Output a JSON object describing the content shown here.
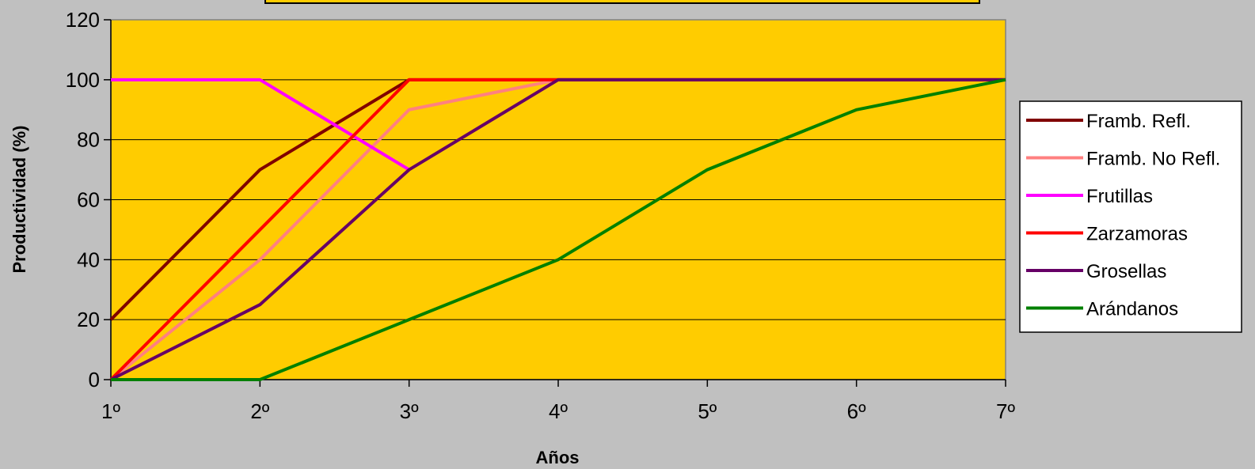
{
  "chart_data": {
    "type": "line",
    "title": "",
    "xlabel": "Años",
    "ylabel": "Productividad (%)",
    "categories": [
      "1º",
      "2º",
      "3º",
      "4º",
      "5º",
      "6º",
      "7º"
    ],
    "ylim": [
      0,
      120
    ],
    "yticks": [
      0,
      20,
      40,
      60,
      80,
      100,
      120
    ],
    "grid": true,
    "legend_position": "right",
    "plot_background": "#FFCC00",
    "series": [
      {
        "name": "Framb. Refl.",
        "color": "#800000",
        "values": [
          20,
          70,
          100,
          100,
          100,
          100,
          100
        ]
      },
      {
        "name": "Framb. No Refl.",
        "color": "#FF8080",
        "values": [
          0,
          40,
          90,
          100,
          100,
          100,
          100
        ]
      },
      {
        "name": "Frutillas",
        "color": "#FF00FF",
        "values": [
          100,
          100,
          70,
          null,
          null,
          null,
          null
        ]
      },
      {
        "name": "Zarzamoras",
        "color": "#FF0000",
        "values": [
          0,
          50,
          100,
          100,
          100,
          100,
          100
        ]
      },
      {
        "name": "Grosellas",
        "color": "#660066",
        "values": [
          0,
          25,
          70,
          100,
          100,
          100,
          100
        ]
      },
      {
        "name": "Arándanos",
        "color": "#008000",
        "values": [
          0,
          0,
          20,
          40,
          70,
          90,
          100
        ]
      }
    ]
  }
}
